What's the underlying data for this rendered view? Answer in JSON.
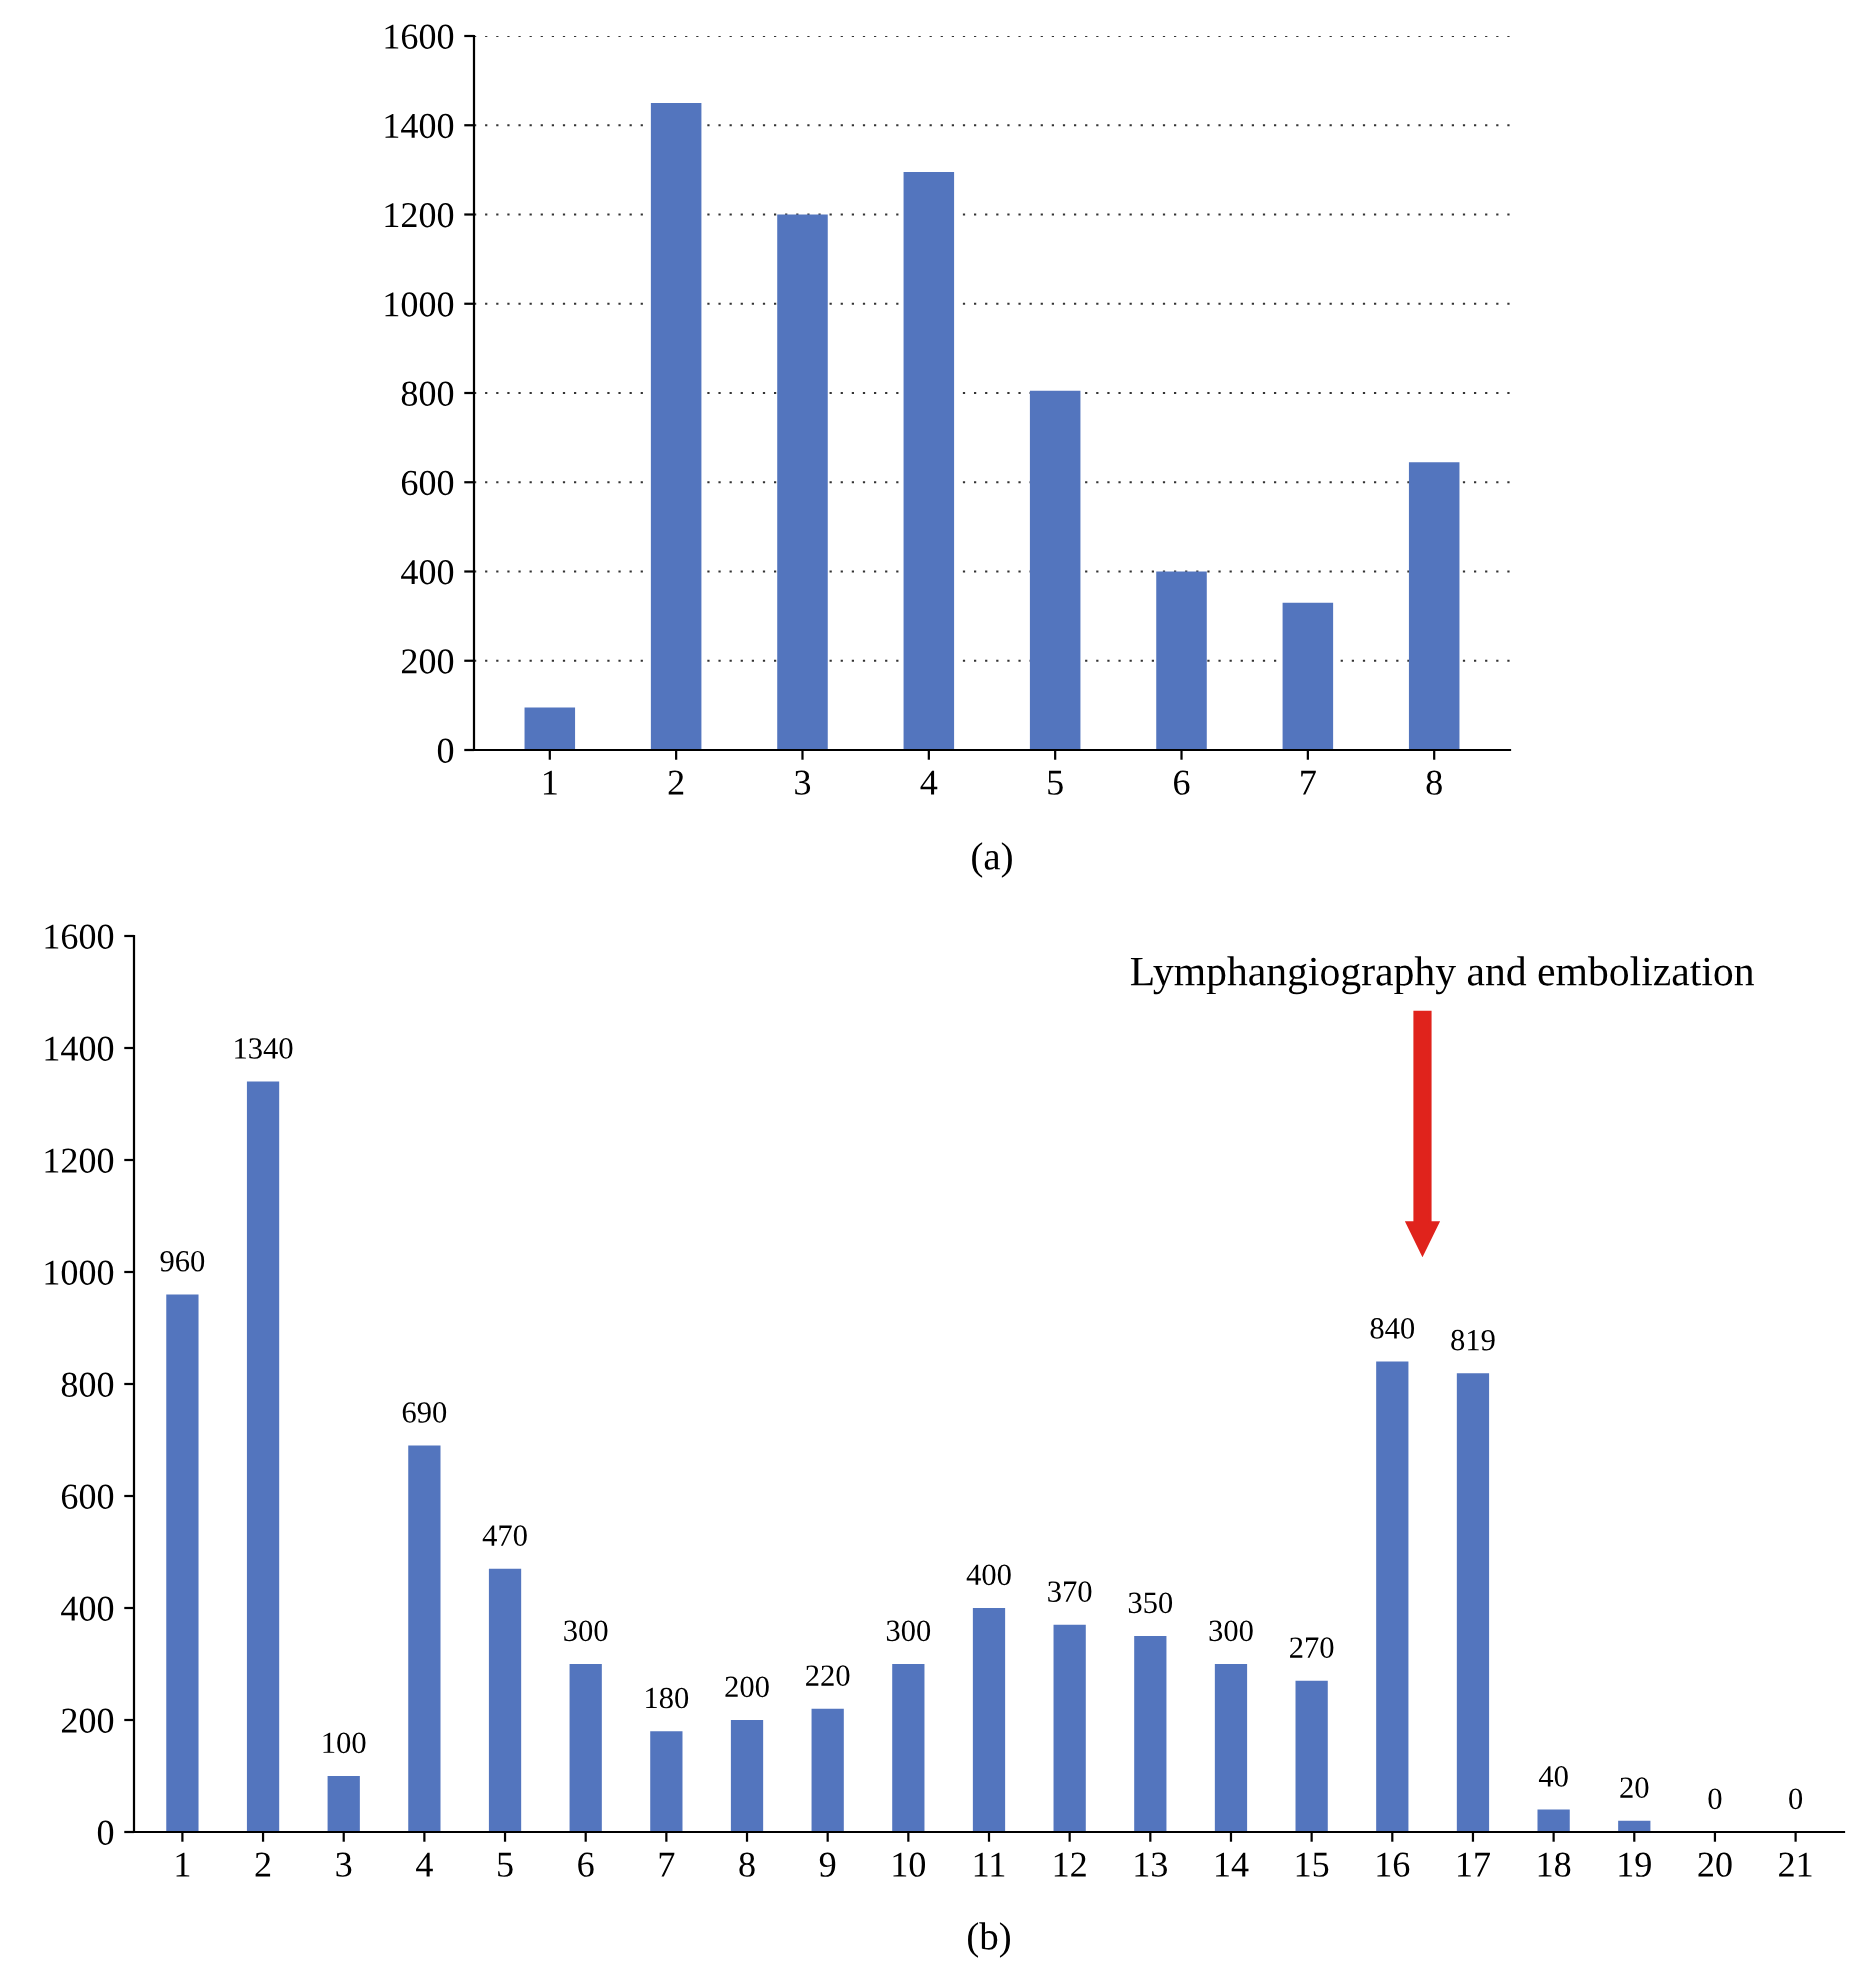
{
  "chart_data": [
    {
      "type": "bar",
      "categories": [
        "1",
        "2",
        "3",
        "4",
        "5",
        "6",
        "7",
        "8"
      ],
      "values": [
        95,
        1450,
        1200,
        1295,
        805,
        400,
        330,
        645
      ],
      "color": "#5375be",
      "ylim": [
        0,
        1600
      ],
      "yticks": [
        0,
        200,
        400,
        600,
        800,
        1000,
        1200,
        1400,
        1600
      ],
      "grid": "y",
      "annotations": [
        "(a)"
      ]
    },
    {
      "type": "bar",
      "categories": [
        "1",
        "2",
        "3",
        "4",
        "5",
        "6",
        "7",
        "8",
        "9",
        "10",
        "11",
        "12",
        "13",
        "14",
        "15",
        "16",
        "17",
        "18",
        "19",
        "20",
        "21"
      ],
      "values": [
        960,
        1340,
        100,
        690,
        470,
        300,
        180,
        200,
        220,
        300,
        400,
        370,
        350,
        300,
        270,
        840,
        819,
        40,
        20,
        0,
        0
      ],
      "color": "#5375be",
      "data_labels": true,
      "ylim": [
        0,
        1600
      ],
      "yticks": [
        0,
        200,
        400,
        600,
        800,
        1000,
        1200,
        1400,
        1600
      ],
      "annotations": [
        "Lymphangiography and embolization",
        "(b)"
      ]
    }
  ]
}
